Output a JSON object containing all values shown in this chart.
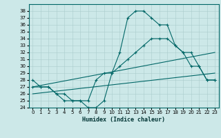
{
  "xlabel": "Humidex (Indice chaleur)",
  "background_color": "#cce8e8",
  "line_color": "#006666",
  "xlim": [
    -0.5,
    23.5
  ],
  "ylim": [
    24,
    39
  ],
  "yticks": [
    24,
    25,
    26,
    27,
    28,
    29,
    30,
    31,
    32,
    33,
    34,
    35,
    36,
    37,
    38
  ],
  "xticks": [
    0,
    1,
    2,
    3,
    4,
    5,
    6,
    7,
    8,
    9,
    10,
    11,
    12,
    13,
    14,
    15,
    16,
    17,
    18,
    19,
    20,
    21,
    22,
    23
  ],
  "series1_x": [
    0,
    1,
    2,
    3,
    4,
    5,
    6,
    7,
    8,
    9,
    10,
    11,
    12,
    13,
    14,
    15,
    16,
    17,
    18,
    19,
    20,
    21,
    22,
    23
  ],
  "series1_y": [
    28,
    27,
    27,
    26,
    25,
    25,
    25,
    24,
    24,
    25,
    29,
    32,
    37,
    38,
    38,
    37,
    36,
    36,
    33,
    32,
    30,
    30,
    28,
    28
  ],
  "series2_x": [
    0,
    1,
    2,
    3,
    4,
    5,
    6,
    7,
    8,
    9,
    10,
    11,
    12,
    13,
    14,
    15,
    16,
    17,
    18,
    19,
    20,
    21,
    22,
    23
  ],
  "series2_y": [
    27,
    27,
    27,
    26,
    26,
    25,
    25,
    25,
    28,
    29,
    29,
    30,
    31,
    32,
    33,
    34,
    34,
    34,
    33,
    32,
    32,
    30,
    28,
    28
  ],
  "series3_x": [
    0,
    23
  ],
  "series3_y": [
    27,
    32
  ],
  "series4_x": [
    0,
    23
  ],
  "series4_y": [
    26,
    29
  ]
}
